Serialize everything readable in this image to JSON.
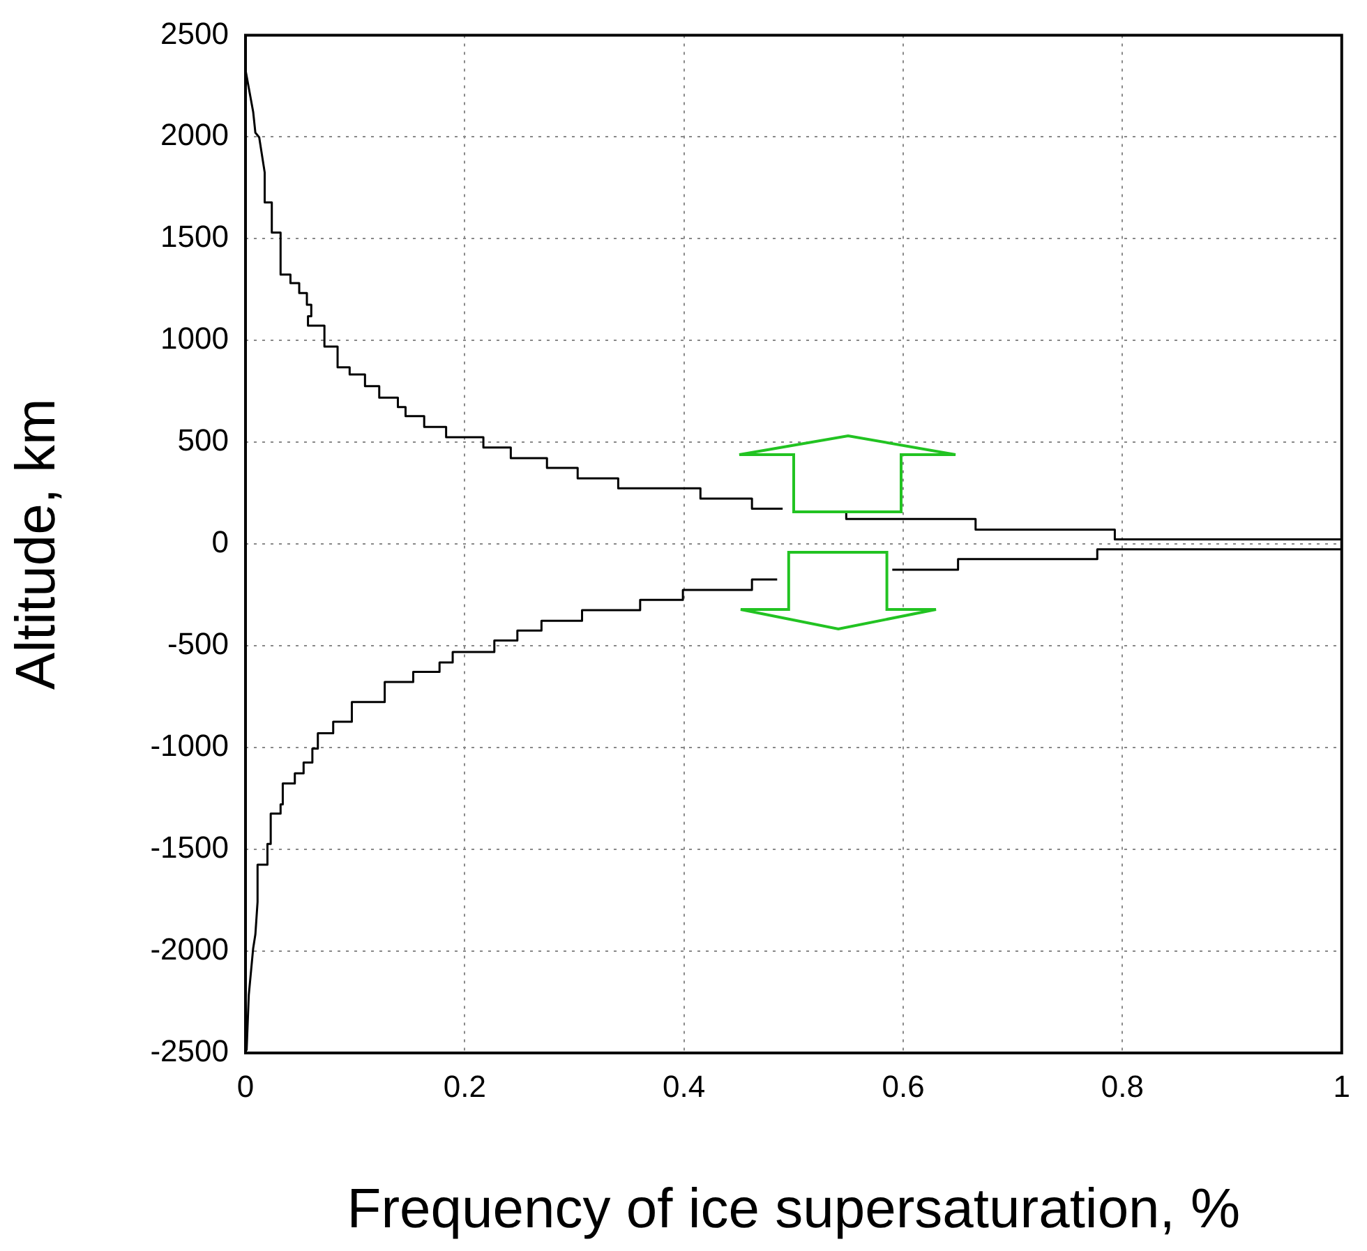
{
  "chart_data": {
    "type": "line",
    "xlabel": "Frequency of ice supersaturation, %",
    "ylabel": "Altitude, km",
    "xlim": [
      0,
      1
    ],
    "xticks": [
      0,
      0.2,
      0.4,
      0.6,
      0.8,
      1
    ],
    "ylim": [
      -2500,
      2500
    ],
    "yticks": [
      -2500,
      -2000,
      -1500,
      -1000,
      -500,
      0,
      500,
      1000,
      1500,
      2000,
      2500
    ],
    "grid": true,
    "legend": false,
    "marker": "none",
    "line_style": "solid",
    "series": [
      {
        "color": "#000000",
        "x": [
          0,
          0.007,
          0.009,
          0.0125,
          0.0175,
          0.0175,
          0.024,
          0.024,
          0.032,
          0.032,
          0.041,
          0.041,
          0.049,
          0.049,
          0.056,
          0.056,
          0.06,
          0.06,
          0.057,
          0.057,
          0.072,
          0.072,
          0.084,
          0.084,
          0.095,
          0.095,
          0.109,
          0.109,
          0.122,
          0.122,
          0.139,
          0.139,
          0.146,
          0.146,
          0.163,
          0.163,
          0.183,
          0.183,
          0.217,
          0.217,
          0.242,
          0.242,
          0.275,
          0.275,
          0.303,
          0.303,
          0.34,
          0.34,
          0.415,
          0.415,
          0.462,
          0.462,
          0.49,
          0.52,
          0.548,
          0.548,
          0.666,
          0.666,
          0.793,
          0.793,
          1
        ],
        "values": [
          2329,
          2123,
          2021,
          1998,
          1826,
          1678,
          1678,
          1530,
          1530,
          1324,
          1324,
          1282,
          1282,
          1233,
          1233,
          1176,
          1176,
          1119,
          1119,
          1073,
          1073,
          970,
          970,
          868,
          868,
          833,
          833,
          776,
          776,
          719,
          719,
          673,
          673,
          628,
          628,
          575,
          575,
          525,
          525,
          474,
          474,
          422,
          422,
          374,
          374,
          323,
          323,
          274,
          274,
          223,
          223,
          174,
          174,
          null,
          155,
          123,
          123,
          71,
          71,
          23,
          23
        ]
      },
      {
        "color": "#000000",
        "x": [
          0.001,
          0.003,
          0.007,
          0.009,
          0.011,
          0.011,
          0.02,
          0.02,
          0.023,
          0.023,
          0.032,
          0.032,
          0.034,
          0.034,
          0.045,
          0.045,
          0.053,
          0.053,
          0.061,
          0.061,
          0.066,
          0.066,
          0.08,
          0.08,
          0.097,
          0.097,
          0.127,
          0.127,
          0.153,
          0.153,
          0.177,
          0.177,
          0.189,
          0.189,
          0.227,
          0.227,
          0.248,
          0.248,
          0.27,
          0.27,
          0.307,
          0.307,
          0.36,
          0.36,
          0.399,
          0.399,
          0.462,
          0.462,
          0.485,
          0.53,
          0.59,
          0.65,
          0.65,
          0.777,
          0.777,
          1
        ],
        "values": [
          -2489,
          -2215,
          -1986,
          -1918,
          -1758,
          -1575,
          -1575,
          -1473,
          -1473,
          -1324,
          -1324,
          -1279,
          -1279,
          -1176,
          -1176,
          -1126,
          -1126,
          -1073,
          -1073,
          -1005,
          -1005,
          -929,
          -929,
          -873,
          -873,
          -776,
          -776,
          -678,
          -678,
          -628,
          -628,
          -582,
          -582,
          -530,
          -530,
          -474,
          -474,
          -425,
          -425,
          -377,
          -377,
          -325,
          -325,
          -274,
          -274,
          -225,
          -225,
          -174,
          -174,
          null,
          -126,
          -126,
          -74,
          -74,
          -26,
          -26
        ]
      }
    ]
  }
}
